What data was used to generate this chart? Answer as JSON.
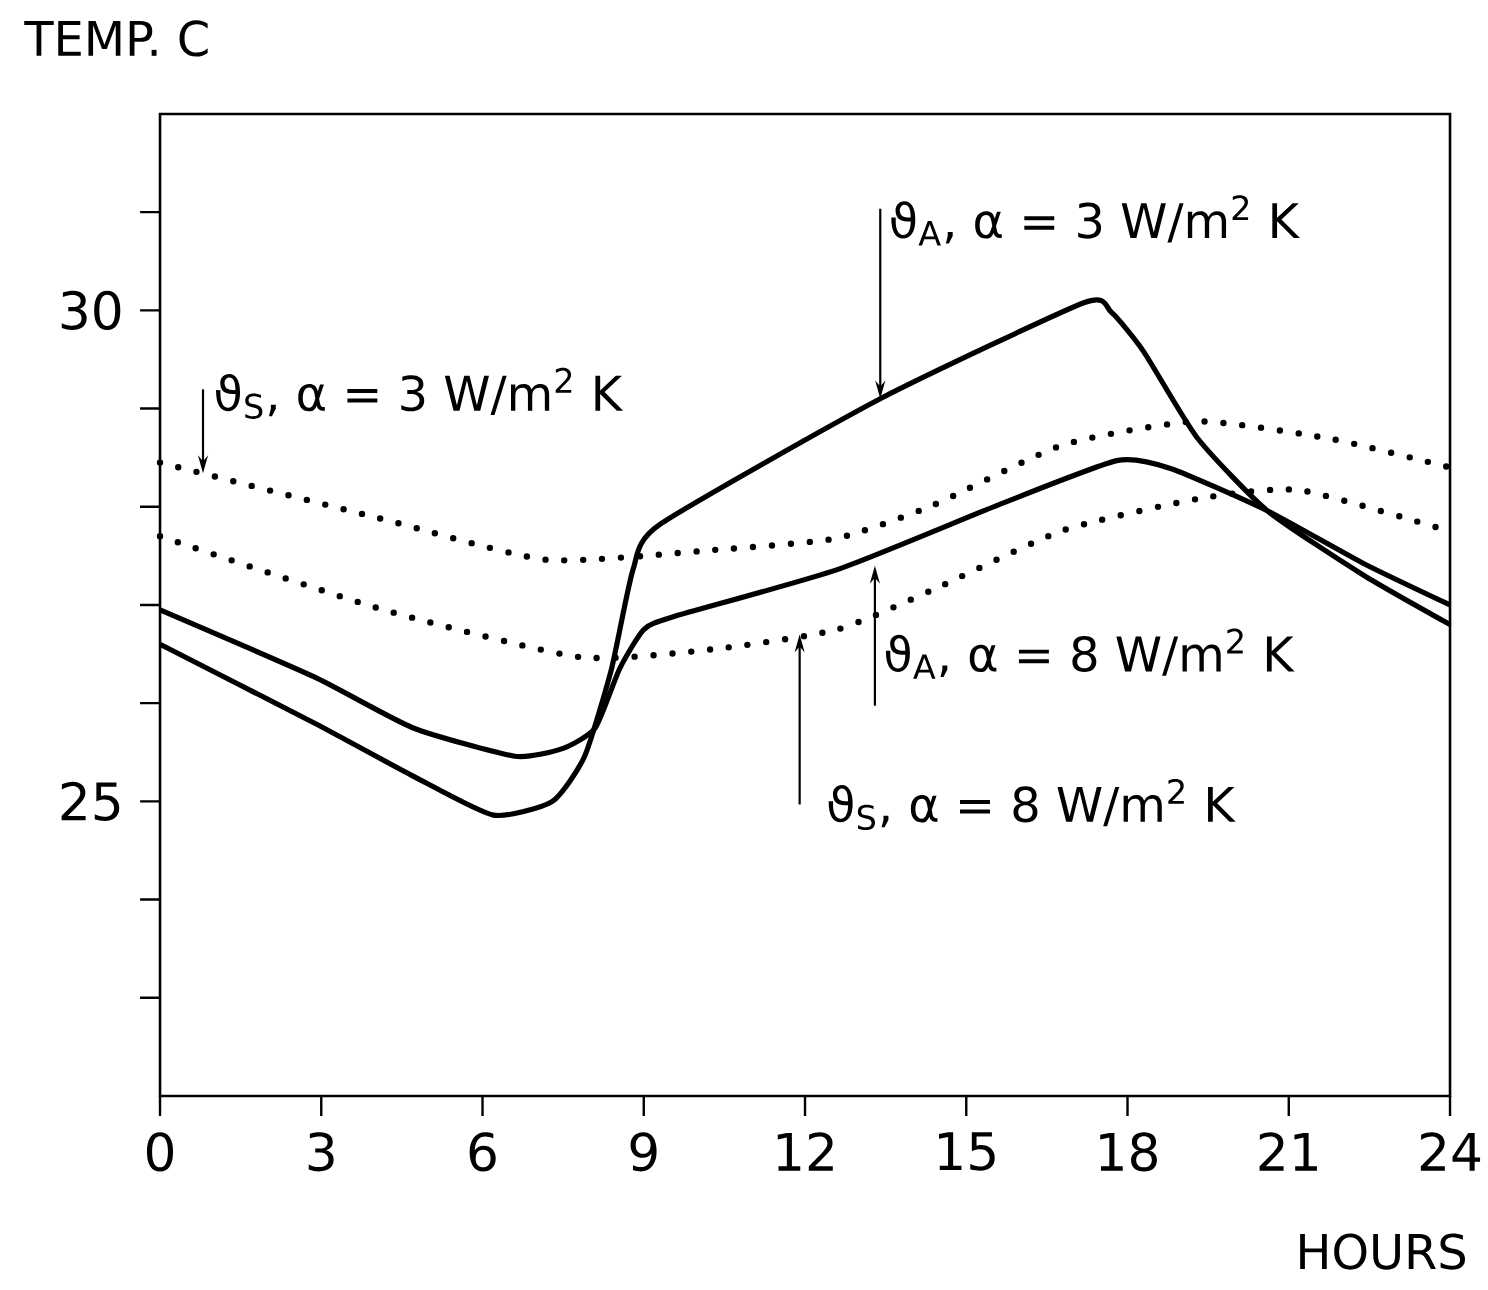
{
  "chart_data": {
    "type": "line",
    "ylabel": "TEMP. C",
    "xlabel": "HOURS",
    "xlim": [
      0,
      24
    ],
    "ylim": [
      22,
      32
    ],
    "xticks": [
      0,
      3,
      6,
      9,
      12,
      15,
      18,
      21,
      24
    ],
    "yticks": [
      {
        "value": 23,
        "label": null
      },
      {
        "value": 24,
        "label": null
      },
      25,
      {
        "value": 26,
        "label": null
      },
      {
        "value": 27,
        "label": null
      },
      {
        "value": 28,
        "label": null
      },
      {
        "value": 29,
        "label": null
      },
      30,
      {
        "value": 31,
        "label": null
      }
    ],
    "grid": false,
    "marker": "none",
    "series": [
      {
        "color": "#000000",
        "line_style": "solid",
        "x": [
          0,
          2.86,
          4.7,
          6.2,
          7.3,
          7.9,
          8.4,
          8.8,
          9.3,
          13.4,
          17.2,
          17.7,
          18.3,
          19.3,
          20.6,
          22.4,
          24
        ],
        "values": [
          26.6,
          25.8,
          25.26,
          24.86,
          25.0,
          25.46,
          26.35,
          27.36,
          27.82,
          29.1,
          30.08,
          29.98,
          29.58,
          28.7,
          27.96,
          27.3,
          26.8
        ]
      },
      {
        "color": "#000000",
        "line_style": "solid",
        "x": [
          0,
          2.86,
          4.7,
          6.6,
          7.5,
          8.1,
          8.55,
          9.0,
          9.55,
          12.6,
          15.6,
          17.8,
          18.8,
          20.6,
          22.4,
          24
        ],
        "values": [
          26.95,
          26.27,
          25.75,
          25.46,
          25.54,
          25.75,
          26.35,
          26.75,
          26.88,
          27.36,
          28.02,
          28.47,
          28.39,
          27.96,
          27.42,
          27.0
        ]
      },
      {
        "color": "#000000",
        "line_style": "dotted",
        "x": [
          0,
          4.1,
          7.2,
          10.3,
          12.6,
          14.4,
          16.8,
          19.3,
          21.8,
          24
        ],
        "values": [
          28.45,
          27.88,
          27.46,
          27.56,
          27.68,
          28.02,
          28.63,
          28.87,
          28.69,
          28.4
        ]
      },
      {
        "color": "#000000",
        "line_style": "dotted",
        "x": [
          0,
          4.1,
          7.8,
          10.3,
          12.6,
          14.4,
          16.8,
          19.3,
          21.2,
          24
        ],
        "values": [
          27.7,
          26.96,
          26.47,
          26.55,
          26.75,
          27.16,
          27.76,
          28.08,
          28.17,
          27.75
        ]
      }
    ],
    "annotations": [
      {
        "text": "ϑ$_{S}$, α = 3 W/m$^{2}$ K",
        "x": 0.8,
        "y": 28.34
      },
      {
        "text": "ϑ$_{A}$, α = 3 W/m$^{2}$ K",
        "x": 13.4,
        "y": 29.1
      },
      {
        "text": "ϑ$_{A}$, α = 8 W/m$^{2}$ K",
        "x": 13.3,
        "y": 27.4
      },
      {
        "text": "ϑ$_{S}$, α = 8 W/m$^{2}$ K",
        "x": 11.9,
        "y": 26.7
      }
    ]
  }
}
